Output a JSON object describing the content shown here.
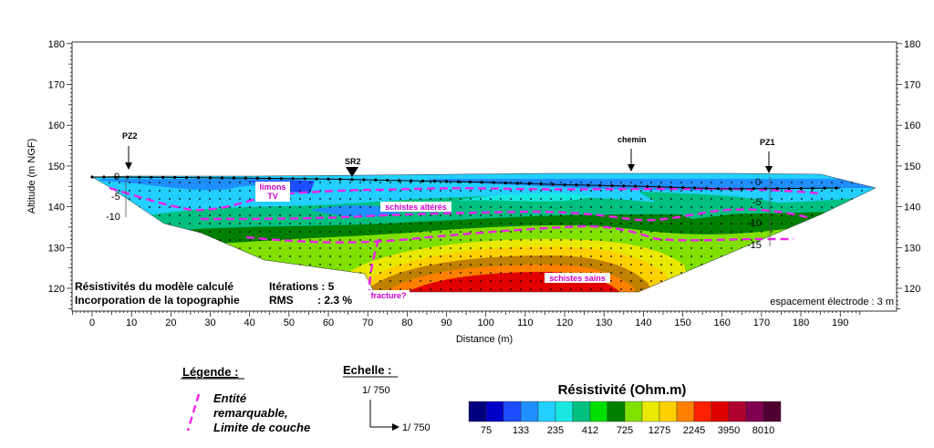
{
  "chart_data": {
    "type": "heatmap",
    "title": "",
    "xlabel": "Distance (m)",
    "ylabel": "Altitude (m NGF)",
    "xlim": [
      -5,
      195
    ],
    "ylim": [
      115,
      180
    ],
    "x_ticks": [
      "0",
      "10",
      "20",
      "30",
      "40",
      "50",
      "60",
      "70",
      "80",
      "90",
      "100",
      "110",
      "120",
      "130",
      "140",
      "150",
      "160",
      "170",
      "180",
      "190"
    ],
    "y_ticks": [
      "120",
      "130",
      "140",
      "150",
      "160",
      "170",
      "180"
    ],
    "grid": false,
    "surface_profile": [
      [
        0,
        147.3
      ],
      [
        20,
        147.2
      ],
      [
        40,
        147
      ],
      [
        60,
        146.8
      ],
      [
        80,
        146.4
      ],
      [
        100,
        146
      ],
      [
        120,
        145.4
      ],
      [
        140,
        145
      ],
      [
        160,
        144.4
      ],
      [
        180,
        144.5
      ],
      [
        190,
        144.6
      ]
    ],
    "annotations": {
      "wells": [
        {
          "label": "PZ2",
          "x": 9
        },
        {
          "label": "SR2",
          "x": 62.5
        },
        {
          "label": "chemin",
          "x": 130
        },
        {
          "label": "PZ1",
          "x": 161
        }
      ],
      "zones": [
        "limons\nTV",
        "schistes altérés",
        "schistes sains",
        "fracture?"
      ],
      "depth_scale_left": [
        "0",
        "-5",
        "-10"
      ],
      "depth_scale_right": [
        "0",
        "-5",
        "-10",
        "-15"
      ]
    },
    "info_left": [
      "Résistivités du modèle calculé",
      "Incorporation de la topographie"
    ],
    "info_mid_labels": [
      "Itérations : 5",
      "RMS"
    ],
    "rms_value": ": 2.3 %",
    "electrode_spacing": "espacement électrode : 3 m"
  },
  "legend": {
    "title": "Légende :",
    "item_lines": [
      "Entité",
      "remarquable,",
      "Limite de couche"
    ]
  },
  "scale": {
    "title": "Echelle :",
    "vertical": "1/ 750",
    "horizontal": "1/ 750"
  },
  "colorbar": {
    "title": "Résistivité (Ohm.m)",
    "colors": [
      "#00007f",
      "#0000c8",
      "#1e4cff",
      "#1f8fff",
      "#22cfff",
      "#18e8e0",
      "#00c080",
      "#00e000",
      "#008000",
      "#80e000",
      "#e8e800",
      "#ffd000",
      "#ff8000",
      "#ff2000",
      "#e00000",
      "#b00030",
      "#800050",
      "#500030"
    ],
    "labels": [
      "75",
      "133",
      "235",
      "412",
      "725",
      "1275",
      "2245",
      "3950",
      "8010"
    ]
  }
}
